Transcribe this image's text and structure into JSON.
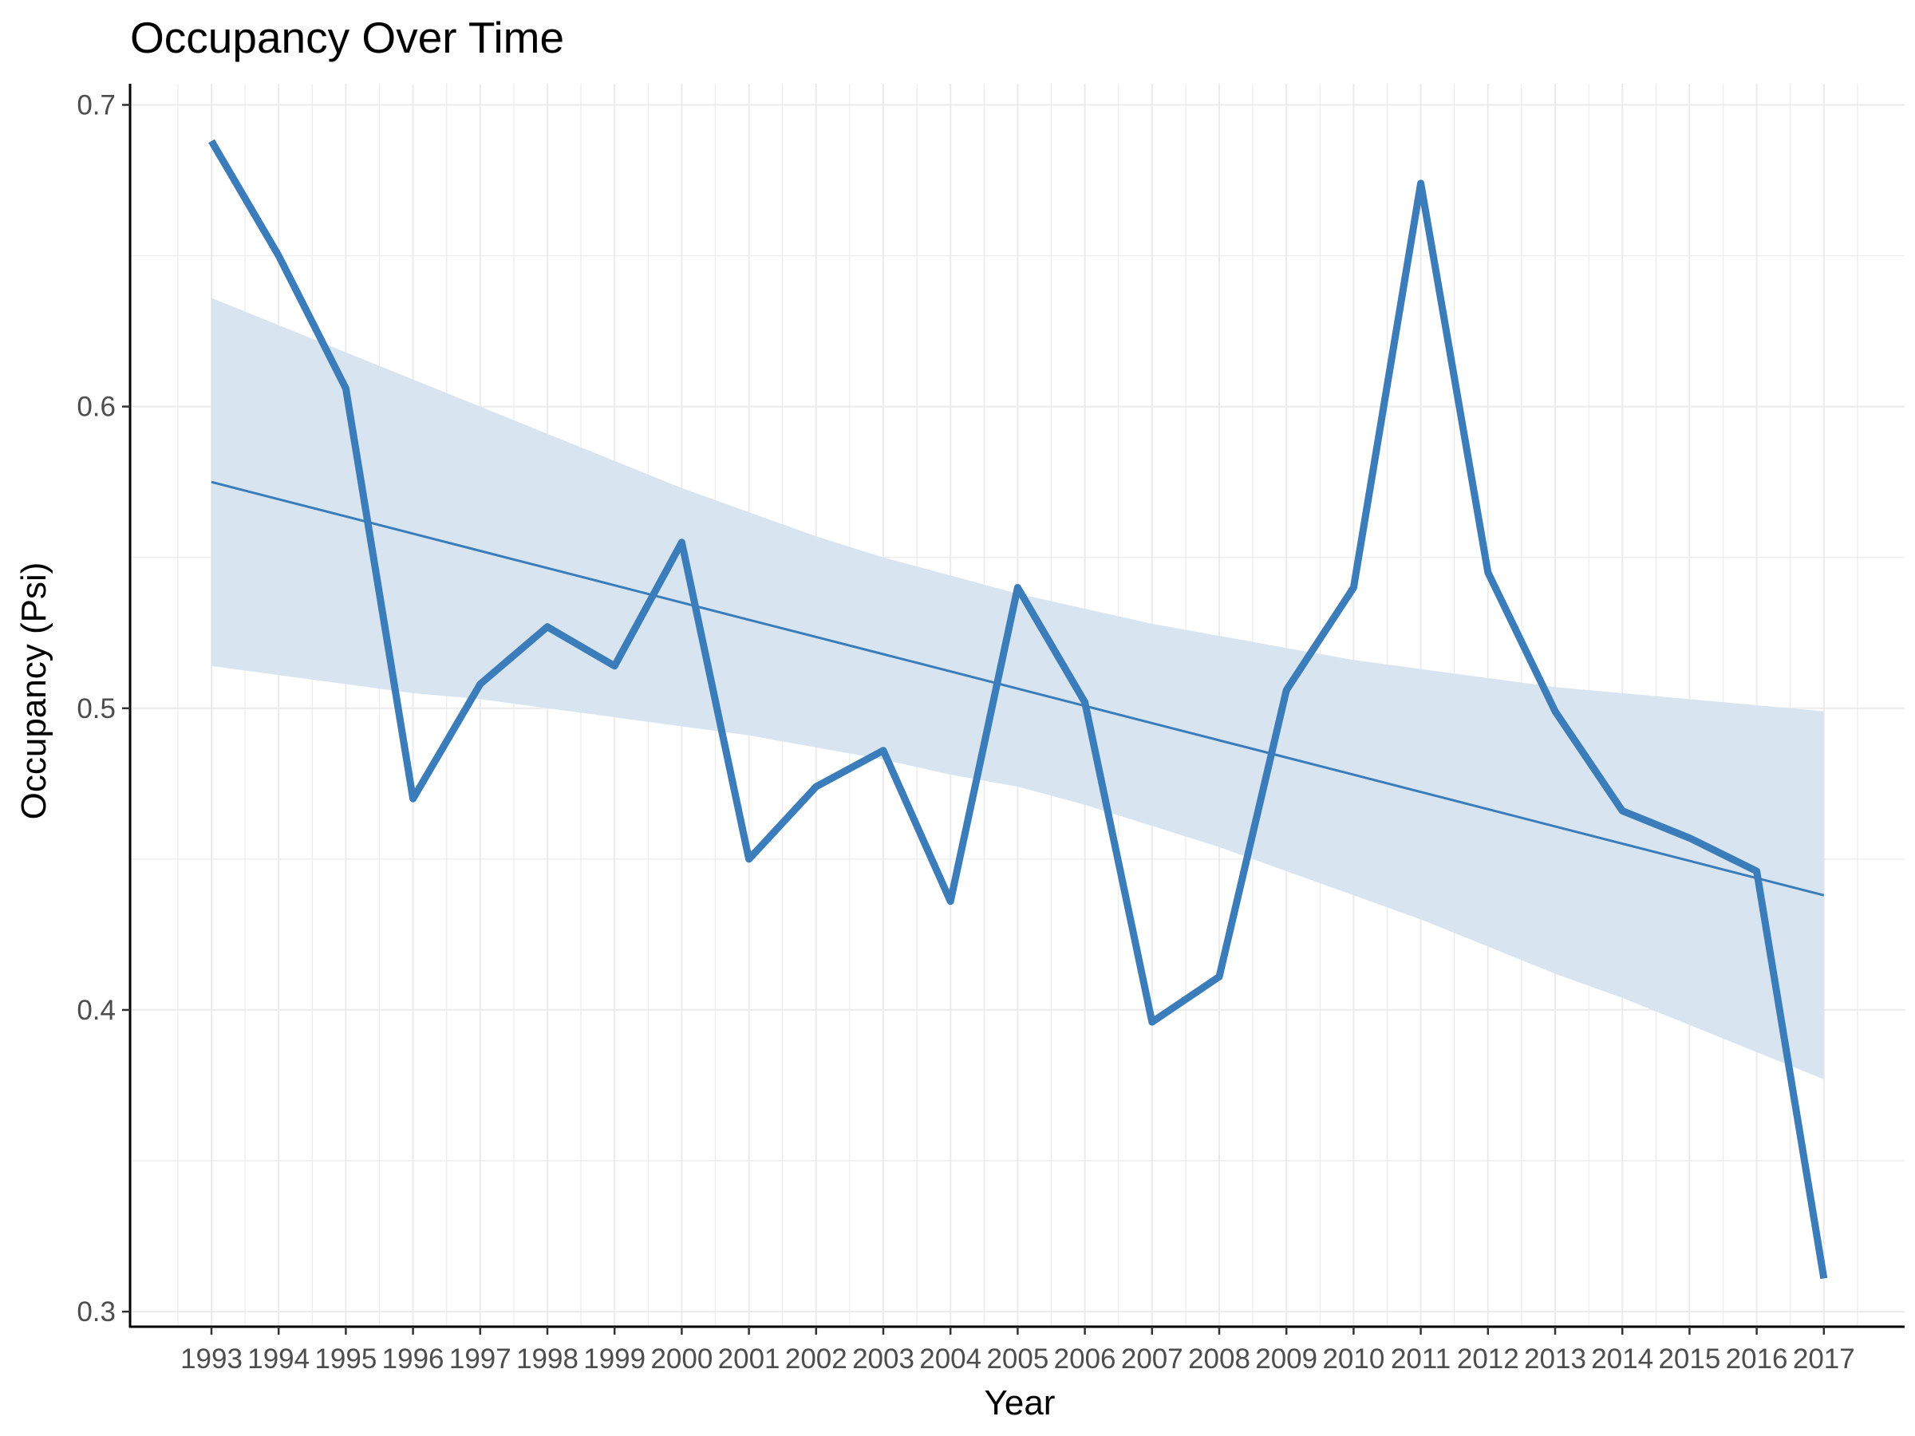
{
  "chart_data": {
    "type": "line",
    "title": "Occupancy Over Time",
    "xlabel": "Year",
    "ylabel": "Occupancy (Psi)",
    "x": [
      "1993",
      "1994",
      "1995",
      "1996",
      "1997",
      "1998",
      "1999",
      "2000",
      "2001",
      "2002",
      "2003",
      "2004",
      "2005",
      "2006",
      "2007",
      "2008",
      "2009",
      "2010",
      "2011",
      "2012",
      "2013",
      "2014",
      "2015",
      "2016",
      "2017"
    ],
    "series": [
      {
        "values": [
          0.688,
          0.65,
          0.606,
          0.47,
          0.508,
          0.527,
          0.514,
          0.555,
          0.45,
          0.474,
          0.486,
          0.436,
          0.54,
          0.502,
          0.396,
          0.411,
          0.506,
          0.54,
          0.674,
          0.545,
          0.499,
          0.466,
          0.457,
          0.446,
          0.311
        ]
      }
    ],
    "trend": {
      "fit": "linear",
      "start": 0.575,
      "end": 0.438,
      "ci_lower": [
        0.514,
        0.511,
        0.508,
        0.505,
        0.503,
        0.5,
        0.497,
        0.494,
        0.491,
        0.487,
        0.483,
        0.478,
        0.474,
        0.468,
        0.461,
        0.454,
        0.446,
        0.438,
        0.43,
        0.421,
        0.412,
        0.404,
        0.395,
        0.386,
        0.377
      ],
      "ci_upper": [
        0.636,
        0.627,
        0.618,
        0.609,
        0.6,
        0.591,
        0.582,
        0.573,
        0.565,
        0.557,
        0.55,
        0.544,
        0.538,
        0.533,
        0.528,
        0.524,
        0.52,
        0.516,
        0.513,
        0.51,
        0.507,
        0.505,
        0.503,
        0.501,
        0.499
      ]
    },
    "ylim": [
      0.295,
      0.707
    ],
    "y_ticks": [
      "0.3",
      "0.4",
      "0.5",
      "0.6",
      "0.7"
    ],
    "grid": true,
    "legend": "none",
    "colors": {
      "line": "#3a7dba",
      "band": "#d8e5f1",
      "trend": "#3a7dba",
      "grid": "#ebebeb",
      "axis": "#000000",
      "tick_text": "#4d4d4d"
    }
  }
}
